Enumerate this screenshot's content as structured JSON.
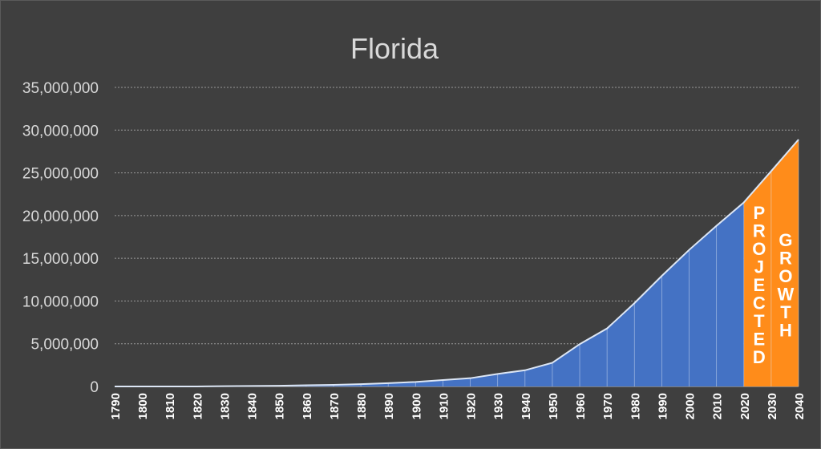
{
  "chart_data": {
    "type": "area",
    "title": "Florida",
    "xlabel": "",
    "ylabel": "",
    "x": [
      "1790",
      "1800",
      "1810",
      "1820",
      "1830",
      "1840",
      "1850",
      "1860",
      "1870",
      "1880",
      "1890",
      "1900",
      "1910",
      "1920",
      "1930",
      "1940",
      "1950",
      "1960",
      "1970",
      "1980",
      "1990",
      "2000",
      "2010",
      "2020",
      "2030",
      "2040"
    ],
    "series": [
      {
        "values": [
          0,
          0,
          0,
          0,
          35000,
          54000,
          87000,
          140000,
          188000,
          269000,
          391000,
          529000,
          753000,
          968000,
          1468000,
          1897000,
          2771000,
          4952000,
          6789000,
          9746000,
          12938000,
          15982000,
          18801000,
          21538000,
          25200000,
          28900000
        ]
      }
    ],
    "historical_end": "2020",
    "projection": {
      "from": "2020",
      "to": "2040",
      "label_1": "PROJECTED",
      "label_2": "GROWTH",
      "color": "#ff8c1a"
    },
    "ylim": [
      0,
      35000000
    ],
    "yticks": [
      0,
      5000000,
      10000000,
      15000000,
      20000000,
      25000000,
      30000000,
      35000000
    ],
    "ytick_labels": [
      "0",
      "5,000,000",
      "10,000,000",
      "15,000,000",
      "20,000,000",
      "25,000,000",
      "30,000,000",
      "35,000,000"
    ],
    "grid": true,
    "legend": "none",
    "colors": {
      "background": "#3f3f3f",
      "area": "#4472c4",
      "projection": "#ff8c1a",
      "outline": "#dce6f5",
      "grid": "#9a9a9a",
      "text": "#d9d9d9"
    }
  }
}
